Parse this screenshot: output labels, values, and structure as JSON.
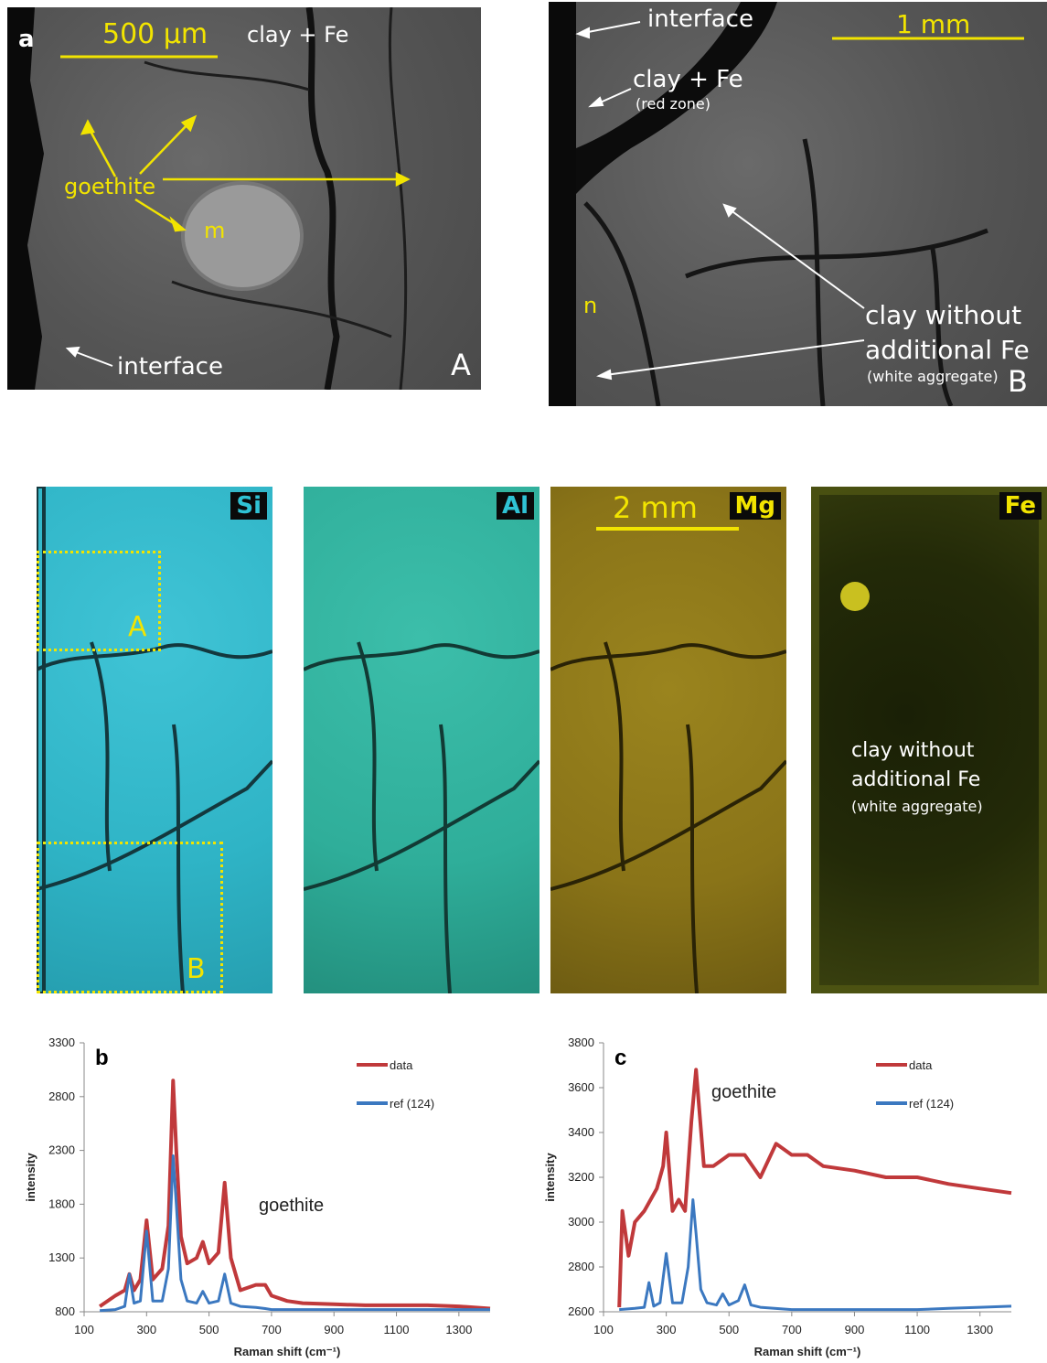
{
  "panel_a": {
    "letter": "a",
    "scale_label": "500 µm",
    "clay_fe": "clay + Fe",
    "goethite": "goethite",
    "m": "m",
    "interface": "interface",
    "corner": "A"
  },
  "panel_b_sem": {
    "interface": "interface",
    "scale_label": "1 mm",
    "clay_fe": "clay + Fe",
    "red_zone": "(red zone)",
    "n": "n",
    "clay_without": "clay without",
    "additional_fe": "additional Fe",
    "white_aggregate": "(white aggregate)",
    "corner": "B"
  },
  "maps": {
    "si": "Si",
    "al": "Al",
    "mg": "Mg",
    "fe": "Fe",
    "scale_label": "2 mm",
    "box_a": "A",
    "box_b": "B",
    "fe_clay_without": "clay without",
    "fe_additional": "additional Fe",
    "fe_white_aggregate": "(white aggregate)",
    "colors": {
      "si": "#2fb4c6",
      "al": "#2fae9a",
      "mg": "#8a7418",
      "fe": "#232a08"
    }
  },
  "chart_data": [
    {
      "type": "line",
      "panel_letter": "b",
      "annotation": "goethite",
      "xlabel": "Raman shift (cm⁻¹)",
      "ylabel": "intensity",
      "xlim": [
        100,
        1400
      ],
      "ylim": [
        800,
        3300
      ],
      "xticks": [
        100,
        300,
        500,
        700,
        900,
        1100,
        1300
      ],
      "yticks": [
        800,
        1300,
        1800,
        2300,
        2800,
        3300
      ],
      "legend_position": "top-right",
      "series": [
        {
          "name": "data",
          "color": "#c0393b",
          "x": [
            150,
            200,
            230,
            245,
            260,
            280,
            300,
            320,
            350,
            370,
            385,
            395,
            410,
            430,
            460,
            480,
            500,
            530,
            550,
            570,
            600,
            650,
            680,
            700,
            750,
            800,
            900,
            1000,
            1100,
            1200,
            1300,
            1400
          ],
          "y": [
            850,
            950,
            1000,
            1150,
            1000,
            1100,
            1650,
            1100,
            1200,
            1600,
            2950,
            2300,
            1500,
            1250,
            1300,
            1450,
            1250,
            1350,
            2000,
            1300,
            1000,
            1050,
            1050,
            950,
            900,
            880,
            870,
            860,
            860,
            860,
            850,
            830
          ]
        },
        {
          "name": "ref (124)",
          "color": "#3b78c0",
          "x": [
            150,
            200,
            230,
            245,
            260,
            280,
            300,
            320,
            350,
            370,
            385,
            395,
            410,
            430,
            460,
            480,
            500,
            530,
            550,
            570,
            600,
            650,
            680,
            700,
            750,
            800,
            900,
            1000,
            1100,
            1200,
            1300,
            1400
          ],
          "y": [
            810,
            820,
            850,
            1150,
            880,
            900,
            1550,
            900,
            900,
            1200,
            2250,
            1800,
            1100,
            900,
            880,
            990,
            880,
            900,
            1150,
            880,
            850,
            840,
            830,
            820,
            820,
            820,
            820,
            820,
            820,
            820,
            820,
            820
          ]
        }
      ]
    },
    {
      "type": "line",
      "panel_letter": "c",
      "annotation": "goethite",
      "xlabel": "Raman shift (cm⁻¹)",
      "ylabel": "intensity",
      "xlim": [
        100,
        1400
      ],
      "ylim": [
        2600,
        3800
      ],
      "xticks": [
        100,
        300,
        500,
        700,
        900,
        1100,
        1300
      ],
      "yticks": [
        2600,
        2800,
        3000,
        3200,
        3400,
        3600,
        3800
      ],
      "legend_position": "top-right",
      "series": [
        {
          "name": "data",
          "color": "#c0393b",
          "x": [
            150,
            160,
            180,
            200,
            230,
            250,
            270,
            290,
            300,
            320,
            340,
            360,
            380,
            395,
            420,
            450,
            500,
            550,
            600,
            650,
            700,
            750,
            800,
            900,
            1000,
            1100,
            1200,
            1300,
            1400
          ],
          "y": [
            2620,
            3050,
            2850,
            3000,
            3050,
            3100,
            3150,
            3250,
            3400,
            3050,
            3100,
            3050,
            3450,
            3680,
            3250,
            3250,
            3300,
            3300,
            3200,
            3350,
            3300,
            3300,
            3250,
            3230,
            3200,
            3200,
            3170,
            3150,
            3130
          ]
        },
        {
          "name": "ref (124)",
          "color": "#3b78c0",
          "x": [
            150,
            200,
            230,
            245,
            260,
            280,
            300,
            320,
            350,
            370,
            385,
            395,
            410,
            430,
            460,
            480,
            500,
            530,
            550,
            570,
            600,
            700,
            800,
            900,
            1000,
            1100,
            1200,
            1300,
            1400
          ],
          "y": [
            2610,
            2615,
            2620,
            2730,
            2625,
            2640,
            2860,
            2640,
            2640,
            2800,
            3100,
            2950,
            2700,
            2640,
            2630,
            2680,
            2630,
            2650,
            2720,
            2630,
            2620,
            2610,
            2610,
            2610,
            2610,
            2610,
            2615,
            2620,
            2625
          ]
        }
      ]
    }
  ]
}
